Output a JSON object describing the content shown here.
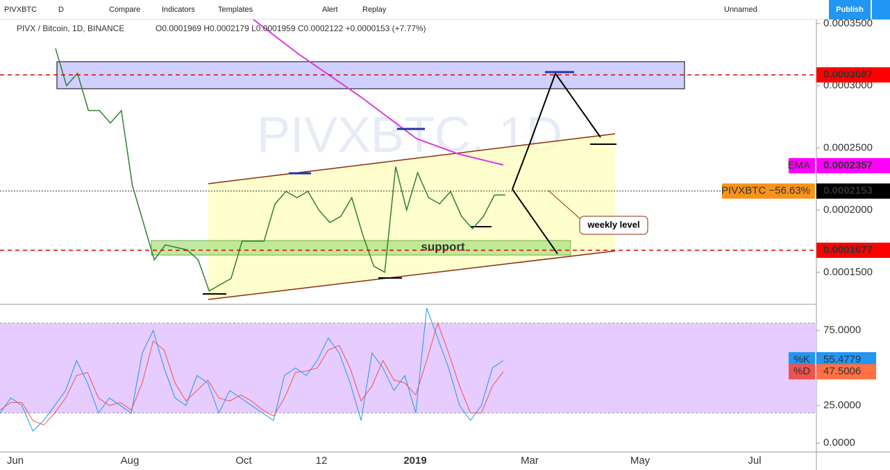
{
  "toolbar": {
    "symbol": "PIVXBTC",
    "interval": "D",
    "items": [
      "Compare",
      "Indicators",
      "Templates",
      "Alert",
      "Replay"
    ],
    "layout": "Unnamed",
    "publish": "Publish"
  },
  "legend": {
    "title": "PIVX / Bitcoin, 1D, BINANCE",
    "ohlc": "O0.0001969 H0.0002179 L0.0001959 C0.0002122 +0.0000153 (+7.77%)"
  },
  "watermark": "PIVXBTC, 1D",
  "price": {
    "ylim": [
      0.0001248,
      0.0003533
    ],
    "ticks": [
      {
        "value": 0.00035,
        "label": "0.0003500"
      },
      {
        "value": 0.0003,
        "label": "0.0003000"
      },
      {
        "value": 0.00025,
        "label": "0.0002500"
      },
      {
        "value": 0.0002,
        "label": "0.0002000"
      },
      {
        "value": 0.00015,
        "label": "0.0001500"
      }
    ],
    "closes": [
      0.00033,
      0.0003,
      0.00031,
      0.00028,
      0.00028,
      0.00027,
      0.00028,
      0.00022,
      0.00019,
      0.00016,
      0.000172,
      0.00017,
      0.000168,
      0.00016,
      0.000135,
      0.00014,
      0.000145,
      0.000175,
      0.000175,
      0.000175,
      0.000205,
      0.000215,
      0.00021,
      0.000215,
      0.0002,
      0.00019,
      0.000195,
      0.00021,
      0.00018,
      0.000155,
      0.00015,
      0.000235,
      0.0002,
      0.00023,
      0.00021,
      0.000205,
      0.000215,
      0.000195,
      0.000185,
      0.000195,
      0.000212,
      0.0002122
    ]
  },
  "tags": [
    {
      "value": 0.0003087,
      "label": "0.0003087"
    },
    {
      "name": "EMA",
      "value": 0.0002357,
      "label": "0.0002357"
    },
    {
      "name": "PIVXBTC −56.63%",
      "value": 0.0002153,
      "label": "0.0002153"
    },
    {
      "value": 0.0001677,
      "label": "0.0001677"
    }
  ],
  "drawings": {
    "support": "support",
    "note": "weekly level"
  },
  "stoch": {
    "ylim": [
      -6,
      92
    ],
    "bands": [
      80,
      20
    ],
    "ticks": [
      {
        "value": 75,
        "label": "75.0000"
      },
      {
        "value": 25,
        "label": "25.0000"
      },
      {
        "value": 0,
        "label": "0.0000"
      }
    ],
    "k": {
      "name": "%K",
      "value": 55.4779,
      "label": "55.4779",
      "values": [
        20,
        30,
        25,
        8,
        15,
        25,
        35,
        55,
        40,
        20,
        30,
        25,
        20,
        60,
        75,
        50,
        30,
        25,
        45,
        40,
        20,
        35,
        30,
        25,
        20,
        15,
        45,
        50,
        45,
        55,
        70,
        60,
        40,
        15,
        60,
        50,
        35,
        45,
        20,
        90,
        70,
        50,
        25,
        15,
        25,
        50,
        55
      ]
    },
    "d": {
      "name": "%D",
      "value": 47.5006,
      "label": "47.5006",
      "values": [
        22,
        27,
        27,
        15,
        12,
        20,
        30,
        45,
        47,
        30,
        25,
        27,
        22,
        40,
        68,
        62,
        40,
        28,
        35,
        42,
        30,
        28,
        32,
        28,
        22,
        18,
        30,
        47,
        48,
        50,
        62,
        65,
        50,
        28,
        38,
        55,
        42,
        40,
        32,
        55,
        80,
        60,
        38,
        20,
        20,
        38,
        47.5
      ]
    }
  },
  "time_axis": [
    "Jun",
    "Aug",
    "Oct",
    "12",
    "2019",
    "Mar",
    "May",
    "Jul"
  ]
}
